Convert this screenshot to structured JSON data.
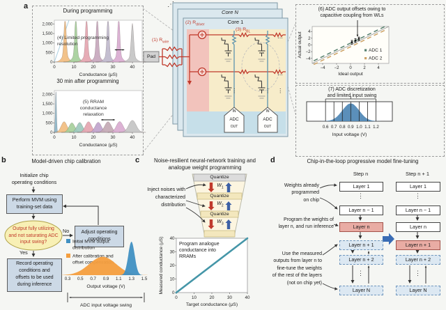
{
  "colors": {
    "wire_red": "#c0392b",
    "bitline_blue": "#5d93ad",
    "flow_box": "#ccd9e6",
    "decision_fill": "#f8f0b5",
    "decision_text": "#c0392b",
    "pink_layer": "#e9aca4",
    "dashed_layer": "#dce8f2",
    "big_arrow": "#3a6cb4",
    "arrow_red": "#c03a2d",
    "arrow_blue": "#3e61a6",
    "core_fill": "#dbe8ee",
    "red_strip": "#f2c3bc",
    "yellow_area": "#f7ecca",
    "blue_strip": "#c6dfe9"
  },
  "panels": {
    "a": {
      "label": "a",
      "core": {
        "core_n": "Core N",
        "core_1": "Core 1",
        "pad": "Pad",
        "r_wire": {
          "base": "(1) R",
          "sub": "wire"
        },
        "r_driver": {
          "base": "(2) R",
          "sub": "driver"
        },
        "r_bl": {
          "base": "(3) R",
          "sub": "BL"
        },
        "adc": {
          "in": "IN",
          "label": "ADC",
          "out": "OUT"
        },
        "dots_h": "⋯",
        "dots_v": "⋮",
        "dots_diag": "⋰"
      }
    },
    "b": {
      "label": "b",
      "title": "Model-driven chip calibration",
      "init": [
        "Initialize chip",
        "operating conditions"
      ],
      "perform": [
        "Perform MVM using",
        "training-set data"
      ],
      "decision": [
        "Output fully utilizing",
        "and not saturating ADC",
        "input swing?"
      ],
      "no": "No",
      "yes": "Yes",
      "adjust": [
        "Adjust operating",
        "conditions"
      ],
      "record": [
        "Record operating",
        "conditions and",
        "offsets to be used",
        "during inference"
      ]
    },
    "c": {
      "label": "c",
      "title": [
        "Noise-resilient neural-network training and",
        "analogue weight programming"
      ],
      "inject": [
        "Inject noises with",
        "characterized",
        "distribution"
      ],
      "quantize": "Quantize",
      "weights": [
        {
          "base": "W",
          "sub": "1"
        },
        {
          "base": "W",
          "sub": "2"
        },
        {
          "base": "W",
          "sub": "3"
        }
      ]
    },
    "d": {
      "label": "d",
      "title": "Chip-in-the-loop progressive model fine-tuning",
      "step_n": "Step n",
      "step_n1": "Step n + 1",
      "layers": [
        "Layer 1",
        "Layer n − 1",
        "Layer n",
        "Layer n + 1",
        "Layer n + 2",
        "Layer N"
      ],
      "t1": [
        "Weights already",
        "programmed",
        "on chip"
      ],
      "t2": [
        "Program the weights of",
        "layer n, and run inference"
      ],
      "t3": [
        "Use the measured",
        "outputs from layer n to",
        "fine-tune the weights",
        "of the rest of the layers",
        "(not on chip yet)"
      ],
      "dots": "⋮"
    }
  },
  "chart_data": [
    {
      "id": "a-during",
      "type": "bar",
      "style": "spiky",
      "title": "During programming",
      "annotation": [
        "(4) Limited programming",
        "resolution"
      ],
      "xlabel": "Conductance (μS)",
      "xlim": [
        0,
        45
      ],
      "ylim": [
        0,
        2200
      ],
      "yticks": [
        0,
        500,
        1000,
        1500,
        2000
      ],
      "ytick_labels": [
        "0",
        "500",
        "1,000",
        "1,500",
        "2,000"
      ],
      "xticks": [
        0,
        10,
        20,
        30,
        40
      ],
      "line": {
        "x1": 0,
        "y1": 0,
        "x2": 7.5,
        "y2": 2200,
        "color": "#a9cfe0"
      },
      "arrow": {
        "x1": 31,
        "x2": 35.8,
        "y": 640
      },
      "series": [
        {
          "center": 5.5,
          "peak": 2080,
          "sigma": 0.55,
          "color": "#f1bd80"
        },
        {
          "center": 11,
          "peak": 2080,
          "sigma": 0.55,
          "color": "#a6cf9b"
        },
        {
          "center": 16.5,
          "peak": 2080,
          "sigma": 0.55,
          "color": "#e4a5b0"
        },
        {
          "center": 22,
          "peak": 2080,
          "sigma": 0.55,
          "color": "#c7a7bd"
        },
        {
          "center": 27.5,
          "peak": 2080,
          "sigma": 0.55,
          "color": "#bfb9cc"
        },
        {
          "center": 33,
          "peak": 2080,
          "sigma": 0.55,
          "color": "#d9abd0"
        },
        {
          "center": 40,
          "peak": 1750,
          "sigma": 0.6,
          "color": "#c4c4c4"
        }
      ]
    },
    {
      "id": "a-after",
      "type": "bar",
      "style": "smooth",
      "title": "30 min after programming",
      "annotation": [
        "(5) RRAM",
        "conductance",
        "relaxation"
      ],
      "xlabel": "Conductance (μS)",
      "xlim": [
        0,
        45
      ],
      "ylim": [
        0,
        2200
      ],
      "yticks": [
        0,
        500,
        1000,
        1500,
        2000
      ],
      "ytick_labels": [
        "0",
        "500",
        "1,000",
        "1,500",
        "2,000"
      ],
      "xticks": [
        0,
        10,
        20,
        30,
        40
      ],
      "arrow": {
        "x1": 24,
        "x2": 31,
        "y": 660
      },
      "series": [
        {
          "center": 0.8,
          "peak": 2150,
          "sigma": 0.3,
          "color": "#8cb6c9"
        },
        {
          "center": 5,
          "peak": 560,
          "sigma": 1.5,
          "color": "#f1bd80"
        },
        {
          "center": 9,
          "peak": 500,
          "sigma": 1.5,
          "color": "#a6cf9b"
        },
        {
          "center": 13,
          "peak": 520,
          "sigma": 1.5,
          "color": "#9dc9bd"
        },
        {
          "center": 17.5,
          "peak": 560,
          "sigma": 1.6,
          "color": "#e4a5b0"
        },
        {
          "center": 22.5,
          "peak": 530,
          "sigma": 1.6,
          "color": "#c0a4cc"
        },
        {
          "center": 27.5,
          "peak": 560,
          "sigma": 1.7,
          "color": "#c3a9b4"
        },
        {
          "center": 33.5,
          "peak": 570,
          "sigma": 1.7,
          "color": "#d9abd0"
        },
        {
          "center": 40,
          "peak": 630,
          "sigma": 1.9,
          "color": "#c4c4c4"
        }
      ]
    },
    {
      "id": "adc-offsets",
      "type": "scatter",
      "title": [
        "(6) ADC output offsets owing to",
        "capacitive coupling from WLs"
      ],
      "xlabel": "Ideal output",
      "ylabel": "Actual output",
      "xlim": [
        -5.5,
        5.5
      ],
      "ylim": [
        -5.5,
        5.5
      ],
      "ticks": [
        -4,
        -2,
        0,
        2,
        4
      ],
      "tick_labels": [
        "−4",
        "−2",
        "0",
        "2",
        "4"
      ],
      "series": [
        {
          "name": "ADC 1",
          "offset": 0.55,
          "color": "#567f6e"
        },
        {
          "name": "ADC 2",
          "offset": -0.55,
          "color": "#cda266"
        }
      ],
      "cluster": {
        "points": [
          [
            0.2,
            0.8
          ],
          [
            0.7,
            1.3
          ],
          [
            1.2,
            1.8
          ]
        ],
        "err": 0.55,
        "color": "#111111"
      }
    },
    {
      "id": "adc-disc",
      "type": "area",
      "title": [
        "(7) ADC discretization",
        "and limited input swing"
      ],
      "xlabel": "Input voltage (V)",
      "box_xlim": [
        0.375,
        1.395
      ],
      "levels": [
        0.6,
        0.7,
        0.8,
        0.9,
        1.0,
        1.1,
        1.2
      ],
      "xticks": [
        "0.6",
        "0.7",
        "0.8",
        "0.9",
        "1.0",
        "1.1",
        "1.2"
      ],
      "gauss": {
        "center": 0.9,
        "sigma": 0.1
      },
      "bracket": [
        0.6,
        1.2
      ],
      "color": "#4d86b4"
    },
    {
      "id": "b-dist",
      "type": "area",
      "xlim": [
        0.3,
        1.5
      ],
      "xticks": [
        "0.3",
        "0.5",
        "0.7",
        "0.9",
        "1.1",
        "1.3",
        "1.5"
      ],
      "xlabel": "Output voltage (V)",
      "swing_label": "ADC input voltage swing",
      "series": [
        {
          "name": [
            "Initial MVM output",
            "distribution"
          ],
          "center": 1.3,
          "sigma": 0.05,
          "height": 1.0,
          "color": "#4090c2"
        },
        {
          "name": [
            "After calibration and",
            "offset compensation"
          ],
          "center": 0.85,
          "sigma": 0.21,
          "height": 0.55,
          "color": "#f49e3e"
        }
      ]
    },
    {
      "id": "c-line",
      "type": "line",
      "annotation": [
        "Program analogue",
        "conductance into",
        "RRAMs"
      ],
      "xlabel": "Target conductance (μS)",
      "ylabel": "Measured conductance (μS)",
      "xlim": [
        0,
        40
      ],
      "ylim": [
        0,
        40
      ],
      "xticks": [
        0,
        10,
        20,
        30,
        40
      ],
      "yticks": [
        0,
        10,
        20,
        30,
        40
      ],
      "points": [
        [
          0,
          0
        ],
        [
          40,
          40
        ]
      ],
      "color": "#4596a8"
    }
  ]
}
